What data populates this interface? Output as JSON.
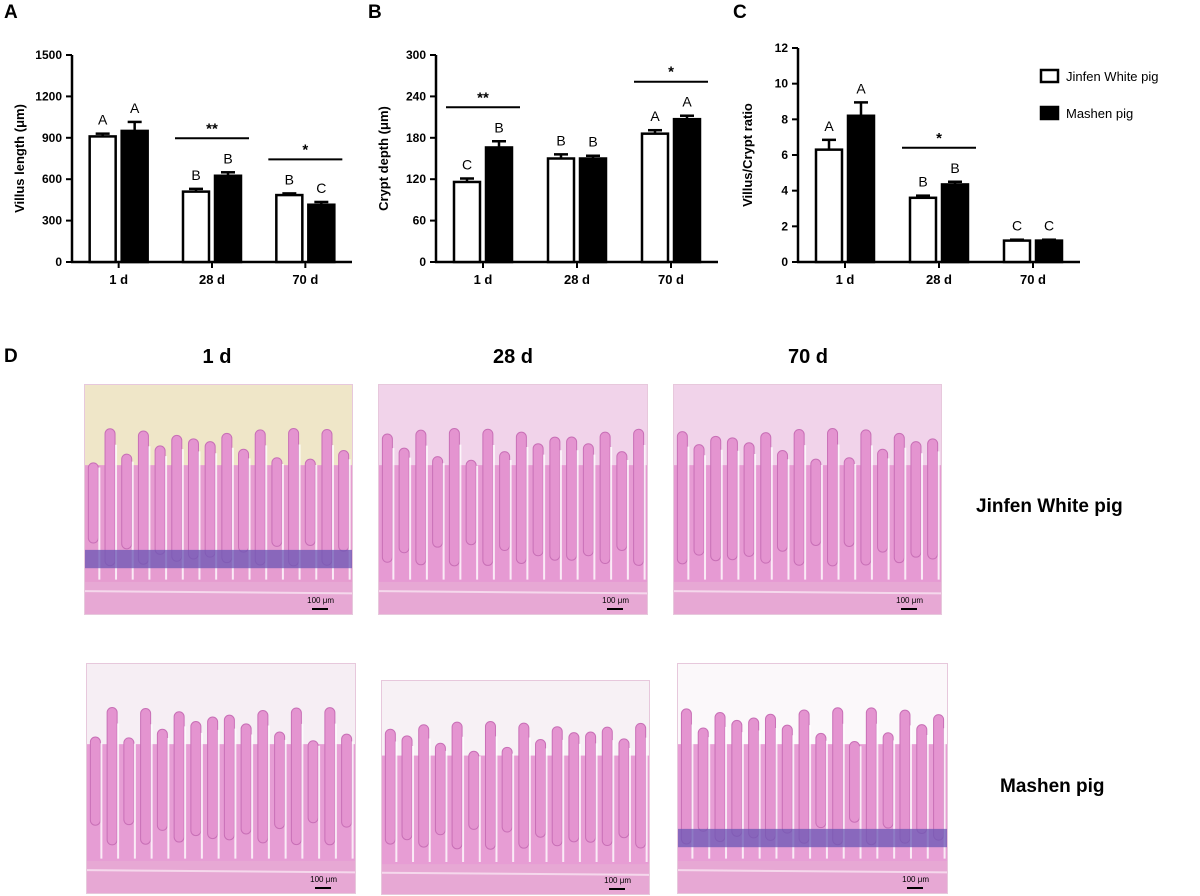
{
  "panels": {
    "a": "A",
    "b": "B",
    "c": "C",
    "d": "D"
  },
  "legend": {
    "jinfen": "Jinfen White pig",
    "mashen": "Mashen pig"
  },
  "colors": {
    "jinfen": "#ffffff",
    "mashen": "#000000",
    "stain_pink": "#e494d0",
    "stain_purple": "#6a56b4"
  },
  "chart_data": [
    {
      "type": "bar",
      "categories": [
        "1 d",
        "28 d",
        "70 d"
      ],
      "ylabel": "Villus length (μm)",
      "ylim": [
        0,
        1500
      ],
      "yticks": [
        "0",
        "300",
        "600",
        "900",
        "1200",
        "1500"
      ],
      "series": [
        {
          "name": "Jinfen White pig",
          "values": [
            910,
            510,
            485
          ],
          "err": [
            20,
            20,
            12
          ],
          "letters": [
            "A",
            "B",
            "B"
          ]
        },
        {
          "name": "Mashen pig",
          "values": [
            950,
            625,
            415
          ],
          "err": [
            65,
            25,
            20
          ],
          "letters": [
            "A",
            "B",
            "C"
          ]
        }
      ],
      "sig": [
        {
          "cat": 1,
          "label": "**"
        },
        {
          "cat": 2,
          "label": "*"
        }
      ]
    },
    {
      "type": "bar",
      "categories": [
        "1 d",
        "28 d",
        "70 d"
      ],
      "ylabel": "Crypt depth (μm)",
      "ylim": [
        0,
        300
      ],
      "yticks": [
        "0",
        "60",
        "120",
        "180",
        "240",
        "300"
      ],
      "series": [
        {
          "name": "Jinfen White pig",
          "values": [
            116,
            150,
            186
          ],
          "err": [
            5,
            6,
            5
          ],
          "letters": [
            "C",
            "B",
            "A"
          ]
        },
        {
          "name": "Mashen pig",
          "values": [
            166,
            150,
            207
          ],
          "err": [
            9,
            4,
            5
          ],
          "letters": [
            "B",
            "B",
            "A"
          ]
        }
      ],
      "sig": [
        {
          "cat": 0,
          "label": "**"
        },
        {
          "cat": 2,
          "label": "*"
        }
      ]
    },
    {
      "type": "bar",
      "categories": [
        "1 d",
        "28 d",
        "70 d"
      ],
      "ylabel": "Villus/Crypt ratio",
      "ylim": [
        0,
        12
      ],
      "yticks": [
        "0",
        "2",
        "4",
        "6",
        "8",
        "10",
        "12"
      ],
      "series": [
        {
          "name": "Jinfen White pig",
          "values": [
            6.3,
            3.6,
            1.2
          ],
          "err": [
            0.55,
            0.12,
            0.05
          ],
          "letters": [
            "A",
            "B",
            "C"
          ]
        },
        {
          "name": "Mashen pig",
          "values": [
            8.2,
            4.35,
            1.2
          ],
          "err": [
            0.75,
            0.15,
            0.05
          ],
          "letters": [
            "A",
            "B",
            "C"
          ]
        }
      ],
      "sig": [
        {
          "cat": 1,
          "label": "*"
        }
      ]
    }
  ],
  "micrographs": {
    "columns": [
      "1 d",
      "28 d",
      "70 d"
    ],
    "rows": [
      "Jinfen White pig",
      "Mashen pig"
    ],
    "scale_bar": "100 μm"
  }
}
